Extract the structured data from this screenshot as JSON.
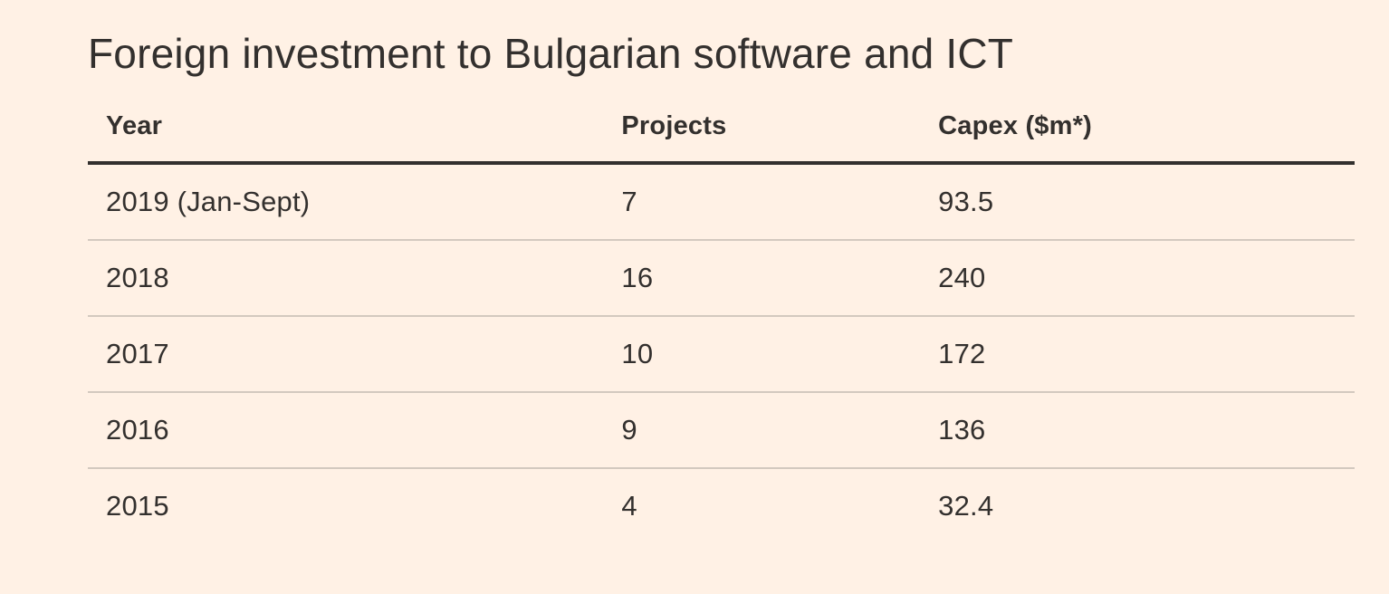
{
  "title": "Foreign investment to Bulgarian software and ICT",
  "table": {
    "columns": [
      "Year",
      "Projects",
      "Capex ($m*)"
    ],
    "rows": [
      [
        "2019 (Jan-Sept)",
        "7",
        "93.5"
      ],
      [
        "2018",
        "16",
        "240"
      ],
      [
        "2017",
        "10",
        "172"
      ],
      [
        "2016",
        "9",
        "136"
      ],
      [
        "2015",
        "4",
        "32.4"
      ]
    ]
  },
  "chart_data": {
    "type": "table",
    "title": "Foreign investment to Bulgarian software and ICT",
    "columns": [
      "Year",
      "Projects",
      "Capex ($m*)"
    ],
    "rows": [
      {
        "year": "2019 (Jan-Sept)",
        "projects": 7,
        "capex_usd_m": 93.5
      },
      {
        "year": "2018",
        "projects": 16,
        "capex_usd_m": 240
      },
      {
        "year": "2017",
        "projects": 10,
        "capex_usd_m": 172
      },
      {
        "year": "2016",
        "projects": 9,
        "capex_usd_m": 136
      },
      {
        "year": "2015",
        "projects": 4,
        "capex_usd_m": 32.4
      }
    ]
  },
  "colors": {
    "background": "#FFF1E5",
    "text": "#33302E",
    "header_rule": "#33302E",
    "row_rule": "#D3C9BF"
  }
}
